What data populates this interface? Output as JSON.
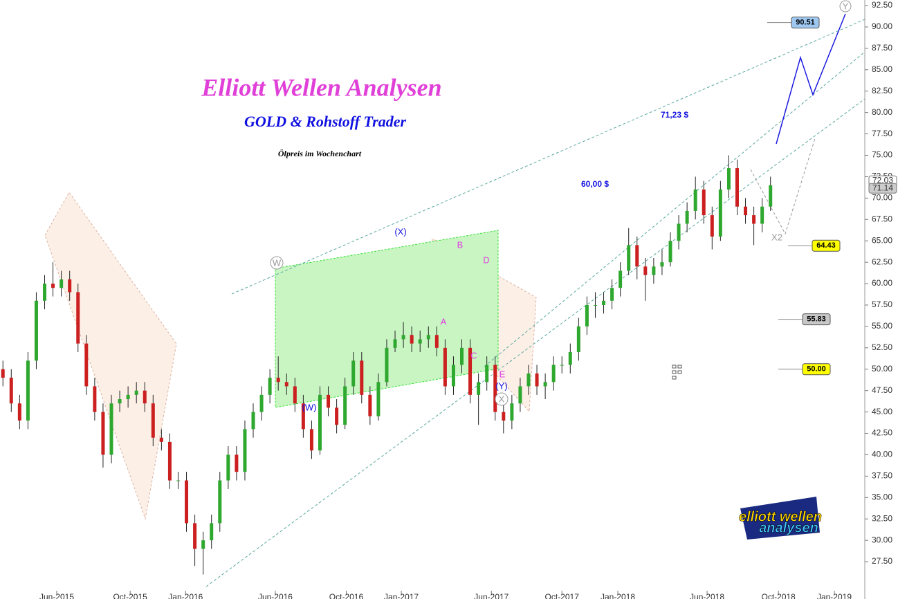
{
  "chart_data": {
    "type": "candlestick",
    "title": "Elliott Wellen Analysen",
    "subtitle": "GOLD & Rohstoff Trader",
    "caption": "Ölpreis im Wochenchart",
    "x": [
      0,
      2,
      4,
      6,
      8,
      10,
      12,
      14,
      16,
      18,
      20,
      22,
      24,
      26,
      28,
      30,
      32,
      34,
      36,
      38,
      40,
      42,
      44,
      46,
      48,
      50,
      52,
      54,
      56,
      58,
      60,
      62,
      64,
      66,
      68,
      70,
      72,
      74,
      76,
      78,
      80,
      82,
      84,
      86,
      88,
      90,
      92,
      94,
      96,
      98,
      100,
      102,
      104,
      106,
      108,
      110,
      112,
      114,
      116,
      118,
      120,
      122,
      124,
      126,
      128,
      130,
      132,
      134,
      136,
      138,
      140,
      142,
      144,
      146,
      148,
      150,
      152,
      154,
      156,
      158,
      160,
      162,
      164,
      166,
      168,
      170,
      172,
      174,
      176,
      178,
      180,
      182,
      184
    ],
    "open": [
      50,
      49,
      46,
      44,
      51,
      58,
      60,
      59.5,
      60.5,
      59,
      53,
      48,
      45,
      40,
      46,
      46.5,
      47,
      47.5,
      46,
      42,
      41.5,
      37,
      37,
      32,
      29,
      30,
      32,
      37,
      40,
      38,
      43,
      45,
      47,
      49,
      48.5,
      48,
      46,
      43,
      40.5,
      47,
      45.5,
      43.5,
      48,
      51,
      47,
      44.5,
      48.5,
      52.5,
      53.5,
      54,
      53,
      53.5,
      54,
      52.5,
      48,
      50.5,
      52.5,
      47,
      48.5,
      50.5,
      45,
      44,
      46,
      48,
      49.5,
      48,
      48.5,
      50.5,
      50.5,
      52,
      55,
      57.5,
      57.5,
      58,
      59.5,
      61.5,
      64.5,
      62,
      61,
      62,
      62.5,
      65,
      67,
      68.5,
      71,
      68,
      65.5,
      71,
      73.5,
      69,
      68,
      67,
      69
    ],
    "high": [
      51,
      50,
      47,
      52,
      59,
      61,
      62.5,
      61.5,
      61.5,
      60,
      54,
      49,
      46,
      47,
      47.5,
      48,
      48.5,
      48.5,
      47,
      43,
      42.5,
      38,
      38,
      33,
      31,
      33,
      38,
      41,
      41,
      44,
      46,
      48,
      50,
      51.5,
      49.5,
      49,
      47,
      44,
      48,
      48,
      46.5,
      49,
      52,
      52,
      48,
      49.5,
      53.5,
      54.5,
      55.5,
      55,
      54.5,
      55,
      55,
      53.5,
      51.5,
      53.5,
      53.5,
      49.5,
      51.5,
      51.5,
      46,
      47,
      49,
      50.5,
      50.5,
      49.5,
      51.5,
      51.5,
      53,
      56,
      58.5,
      59,
      59,
      60.5,
      62.5,
      66.5,
      65.5,
      63,
      63,
      64,
      66,
      68,
      69.5,
      72.5,
      72,
      69,
      72,
      75,
      74.5,
      70,
      69,
      70,
      72.5
    ],
    "low": [
      48,
      45,
      43,
      43,
      50,
      57,
      58.5,
      58.5,
      58,
      52,
      47,
      44,
      38.5,
      39,
      45,
      45.5,
      46,
      45,
      41,
      40.5,
      36,
      36,
      31,
      27,
      26,
      29,
      31,
      36,
      37,
      37,
      42,
      44,
      46,
      47.5,
      47,
      45,
      42,
      39.5,
      40,
      44.5,
      42.5,
      43,
      47,
      46,
      43.5,
      44,
      48,
      52,
      52.5,
      52,
      52,
      52.5,
      51.5,
      47,
      47,
      49.5,
      46,
      43.5,
      47.5,
      44,
      42.5,
      43,
      45,
      47,
      47,
      46.5,
      47.5,
      49.5,
      49.5,
      51,
      54,
      56,
      56.5,
      57,
      58.5,
      61,
      60.5,
      58,
      60,
      61,
      62,
      64,
      66,
      67.5,
      67,
      64,
      65,
      70,
      68,
      67,
      64.5,
      66,
      68.5
    ],
    "close": [
      49,
      46,
      44,
      51,
      58,
      60,
      59.5,
      60.5,
      59,
      53,
      48,
      45,
      40,
      46,
      46.5,
      47,
      47.5,
      46,
      42,
      41.5,
      37,
      37,
      32,
      29,
      30,
      32,
      37,
      40,
      38,
      43,
      45,
      47,
      49,
      48.5,
      48,
      46,
      43,
      40.5,
      47,
      45.5,
      43.5,
      48,
      51,
      47,
      44.5,
      48.5,
      52.5,
      53.5,
      54,
      53,
      53.5,
      54,
      52.5,
      48,
      50.5,
      52.5,
      47,
      48.5,
      50.5,
      45,
      44,
      46,
      48,
      49.5,
      48,
      48.5,
      50.5,
      50.5,
      52,
      55,
      57.5,
      57.5,
      58,
      59.5,
      61.5,
      64.5,
      62,
      61,
      62,
      62.5,
      65,
      67,
      68.5,
      71,
      68,
      65.5,
      71,
      73.5,
      69,
      68,
      67,
      69,
      71.5
    ],
    "up_color": "#2fa82f",
    "down_color": "#cc2020",
    "xlim": [
      -0.7,
      206.6
    ],
    "xticks": [
      {
        "value": 12.9,
        "label": "Jun-2015"
      },
      {
        "value": 30.5,
        "label": "Oct-2015"
      },
      {
        "value": 43.8,
        "label": "Jan-2016"
      },
      {
        "value": 65.3,
        "label": "Jun-2016"
      },
      {
        "value": 82.3,
        "label": "Oct-2016"
      },
      {
        "value": 95.5,
        "label": "Jan-2017"
      },
      {
        "value": 117.1,
        "label": "Jun-2017"
      },
      {
        "value": 134,
        "label": "Oct-2017"
      },
      {
        "value": 147.4,
        "label": "Jan-2018"
      },
      {
        "value": 168.8,
        "label": "Jun-2018"
      },
      {
        "value": 185.9,
        "label": "Oct-2018"
      },
      {
        "value": 199.3,
        "label": "Jan-2019"
      }
    ],
    "ylim": [
      23.14,
      93.15
    ],
    "yticks": [
      {
        "value": 27.5,
        "label": "27.50"
      },
      {
        "value": 30,
        "label": "30.00"
      },
      {
        "value": 32.5,
        "label": "32.50"
      },
      {
        "value": 35,
        "label": "35.00"
      },
      {
        "value": 37.5,
        "label": "37.50"
      },
      {
        "value": 40,
        "label": "40.00"
      },
      {
        "value": 42.5,
        "label": "42.50"
      },
      {
        "value": 45,
        "label": "45.00"
      },
      {
        "value": 47.5,
        "label": "47.50"
      },
      {
        "value": 50,
        "label": "50.00"
      },
      {
        "value": 52.5,
        "label": "52.50"
      },
      {
        "value": 55,
        "label": "55.00"
      },
      {
        "value": 57.5,
        "label": "57.50"
      },
      {
        "value": 60,
        "label": "60.00"
      },
      {
        "value": 62.5,
        "label": "62.50"
      },
      {
        "value": 65,
        "label": "65.00"
      },
      {
        "value": 67.5,
        "label": "67.50"
      },
      {
        "value": 70,
        "label": "70.00"
      },
      {
        "value": 72.5,
        "label": "72.50"
      },
      {
        "value": 75,
        "label": "75.00"
      },
      {
        "value": 77.5,
        "label": "77.50"
      },
      {
        "value": 80,
        "label": "80.00"
      },
      {
        "value": 82.5,
        "label": "82.50"
      },
      {
        "value": 85,
        "label": "85.00"
      },
      {
        "value": 87.5,
        "label": "87.50"
      },
      {
        "value": 90,
        "label": "90.00"
      },
      {
        "value": 92.5,
        "label": "92.50"
      }
    ],
    "levels": [
      {
        "value": 90.51,
        "label": "90.51",
        "color": "#9ec8f0"
      },
      {
        "value": 64.43,
        "label": "64.43",
        "color": "#ffff00"
      },
      {
        "value": 55.83,
        "label": "55.83",
        "color": "#c8c8c8"
      },
      {
        "value": 50,
        "label": "50.00",
        "color": "#ffff00"
      }
    ],
    "price_labels": [
      72.03,
      71.14
    ],
    "wave_labels": [
      "(X)",
      "(W)",
      "(Y)",
      "E",
      "A",
      "B",
      "C",
      "D",
      "X2"
    ],
    "circled_labels": [
      "W",
      "X",
      "Y"
    ],
    "price_notes": [
      "71,23 $",
      "60,00 $"
    ],
    "logo": [
      "elliott wellen",
      "analysen"
    ]
  }
}
